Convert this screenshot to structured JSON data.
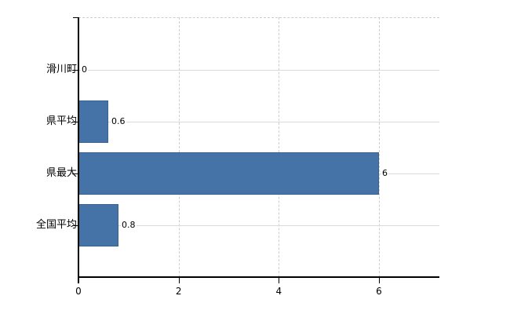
{
  "window": {
    "background": "#ffffff"
  },
  "chart_data": {
    "type": "bar",
    "orientation": "horizontal",
    "title": "",
    "categories": [
      "滑川町",
      "県平均",
      "県最大",
      "全国平均"
    ],
    "values": [
      0,
      0.6,
      6,
      0.8
    ],
    "value_labels": [
      "0",
      "0.6",
      "6",
      "0.8"
    ],
    "x_axis": {
      "ticks": [
        0,
        2,
        4,
        6
      ],
      "tick_labels": [
        "0",
        "2",
        "4",
        "6"
      ],
      "range": [
        0,
        7.2
      ]
    },
    "y_axis": {
      "label": ""
    },
    "grid": true,
    "legend": false,
    "colors": {
      "bar": "#4572a7",
      "bar_border": "#3a6291",
      "axis": "#000000",
      "grid_horizontal": "#d4ddd4",
      "grid_vertical": "#cccccc",
      "text": "#000000"
    }
  }
}
